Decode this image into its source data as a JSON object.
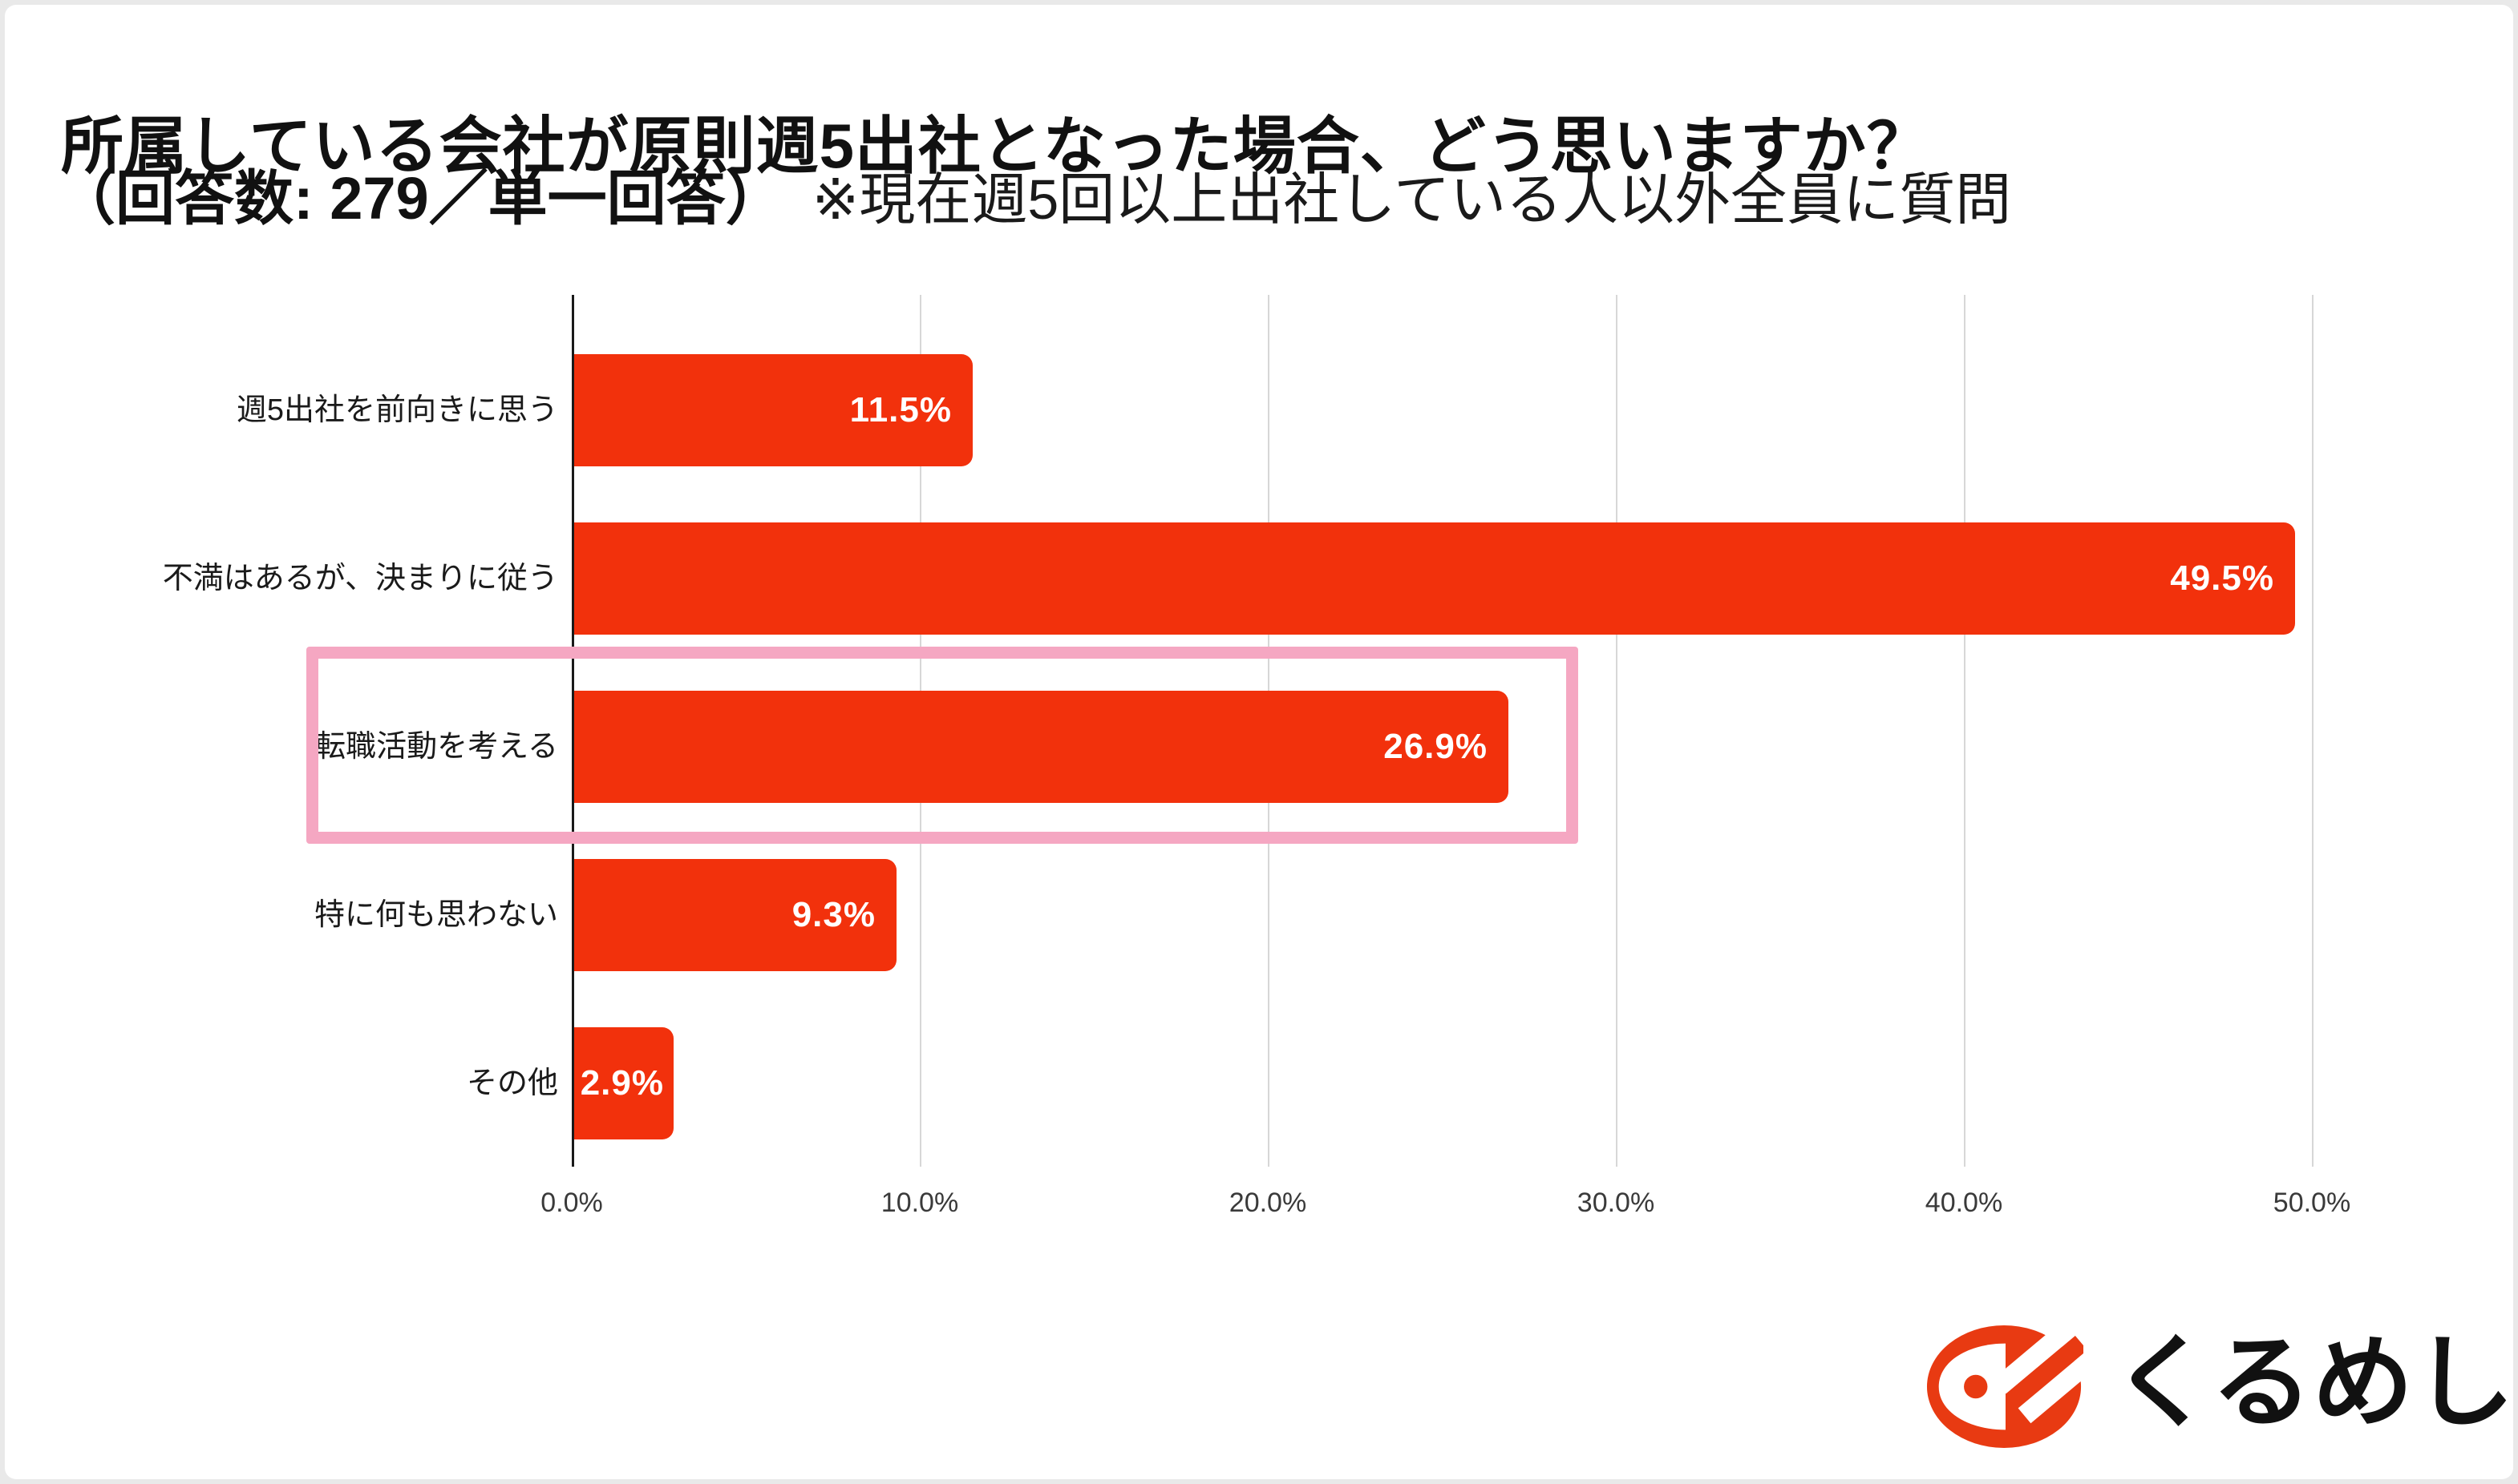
{
  "title": {
    "line1": "所属している会社が原則週5出社となった場合、どう思いますか？",
    "line2_bold": "（回答数: 279／単一回答）",
    "line2_note": "※現在週5回以上出社している人以外全員に質問"
  },
  "chart_data": {
    "type": "bar",
    "orientation": "horizontal",
    "title": "所属している会社が原則週5出社となった場合、どう思いますか？",
    "subtitle": "（回答数: 279／単一回答）※現在週5回以上出社している人以外全員に質問",
    "categories": [
      "週5出社を前向きに思う",
      "不満はあるが、決まりに従う",
      "転職活動を考える",
      "特に何も思わない",
      "その他"
    ],
    "values": [
      11.5,
      49.5,
      26.9,
      9.3,
      2.9
    ],
    "value_labels": [
      "11.5%",
      "49.5%",
      "26.9%",
      "9.3%",
      "2.9%"
    ],
    "unit": "%",
    "xlim": [
      0,
      50
    ],
    "xticks": [
      0,
      10,
      20,
      30,
      40,
      50
    ],
    "xtick_labels": [
      "0.0%",
      "10.0%",
      "20.0%",
      "30.0%",
      "40.0%",
      "50.0%"
    ],
    "grid": "vertical",
    "legend": "none",
    "bar_color": "#f2310c",
    "value_label_color": "#ffffff",
    "highlight": {
      "category_index": 2,
      "category": "転職活動を考える",
      "border_color": "#f5a7c2"
    }
  },
  "logo": {
    "text": "くるめし",
    "mark_color": "#e83a12",
    "text_color": "#111111"
  }
}
